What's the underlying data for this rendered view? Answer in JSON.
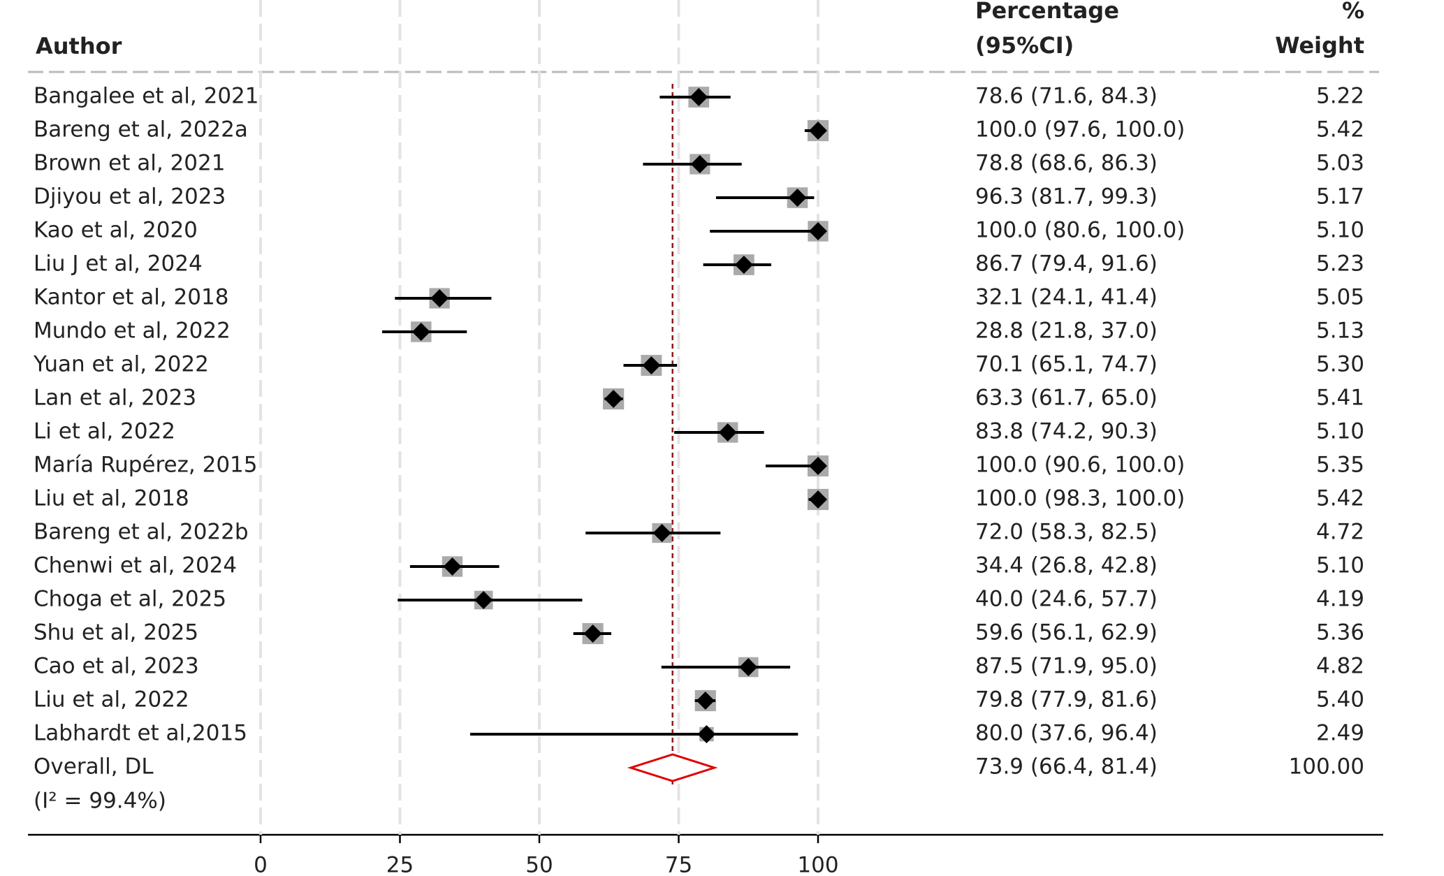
{
  "chart_data": {
    "type": "forest",
    "headers": {
      "author": "Author",
      "estimate_line1": "Percentage",
      "estimate_line2": "(95%CI)",
      "weight_line1": "%",
      "weight_line2": "Weight"
    },
    "studies": [
      "Bangalee et al,  2021",
      "Bareng et al, 2022a",
      "Brown et al, 2021",
      "Djiyou et al, 2023",
      "Kao et al, 2020",
      "Liu J et al, 2024",
      "Kantor et al, 2018",
      "Mundo et al, 2022",
      "Yuan et al, 2022",
      "Lan et al, 2023",
      "Li et al, 2022",
      "María Rupérez, 2015",
      "Liu et al, 2018",
      "Bareng et al, 2022b",
      "Chenwi et al, 2024",
      "Choga et al, 2025",
      "Shu et al, 2025",
      "Cao et al, 2023",
      "Liu et al, 2022",
      "Labhardt et al,2015"
    ],
    "values": [
      78.6,
      100.0,
      78.8,
      96.3,
      100.0,
      86.7,
      32.1,
      28.8,
      70.1,
      63.3,
      83.8,
      100.0,
      100.0,
      72.0,
      34.4,
      40.0,
      59.6,
      87.5,
      79.8,
      80.0
    ],
    "lower": [
      71.6,
      97.6,
      68.6,
      81.7,
      80.6,
      79.4,
      24.1,
      21.8,
      65.1,
      61.7,
      74.2,
      90.6,
      98.3,
      58.3,
      26.8,
      24.6,
      56.1,
      71.9,
      77.9,
      37.6
    ],
    "upper": [
      84.3,
      100.0,
      86.3,
      99.3,
      100.0,
      91.6,
      41.4,
      37.0,
      74.7,
      65.0,
      90.3,
      100.0,
      100.0,
      82.5,
      42.8,
      57.7,
      62.9,
      95.0,
      81.6,
      96.4
    ],
    "ci_labels": [
      "78.6 (71.6, 84.3)",
      "100.0 (97.6, 100.0)",
      "78.8 (68.6, 86.3)",
      "96.3 (81.7, 99.3)",
      "100.0 (80.6, 100.0)",
      "86.7 (79.4, 91.6)",
      "32.1 (24.1, 41.4)",
      "28.8 (21.8, 37.0)",
      "70.1 (65.1, 74.7)",
      "63.3 (61.7, 65.0)",
      "83.8 (74.2, 90.3)",
      "100.0 (90.6, 100.0)",
      "100.0 (98.3, 100.0)",
      "72.0 (58.3, 82.5)",
      "34.4 (26.8, 42.8)",
      "40.0 (24.6, 57.7)",
      "59.6 (56.1, 62.9)",
      "87.5 (71.9, 95.0)",
      "79.8 (77.9, 81.6)",
      "80.0 (37.6, 96.4)"
    ],
    "weights": [
      5.22,
      5.42,
      5.03,
      5.17,
      5.1,
      5.23,
      5.05,
      5.13,
      5.3,
      5.41,
      5.1,
      5.35,
      5.42,
      4.72,
      5.1,
      4.19,
      5.36,
      4.82,
      5.4,
      2.49
    ],
    "weight_labels": [
      "5.22",
      "5.42",
      "5.03",
      "5.17",
      "5.10",
      "5.23",
      "5.05",
      "5.13",
      "5.30",
      "5.41",
      "5.10",
      "5.35",
      "5.42",
      "4.72",
      "5.10",
      "4.19",
      "5.36",
      "4.82",
      "5.40",
      "2.49"
    ],
    "overall": {
      "name": "Overall, DL",
      "value": 73.9,
      "lower": 66.4,
      "upper": 81.4,
      "ci_label": "73.9 (66.4, 81.4)",
      "weight": 100.0,
      "weight_label": "100.00",
      "heterogeneity": "(I² = 99.4%)",
      "color": "#e00000"
    },
    "reference_line_color": "#8b1a1a",
    "marker_color": "#000000",
    "box_color": "#aaaaaa",
    "xlim": [
      0,
      100
    ],
    "xticks": [
      0,
      25,
      50,
      75,
      100
    ],
    "grid": true
  }
}
